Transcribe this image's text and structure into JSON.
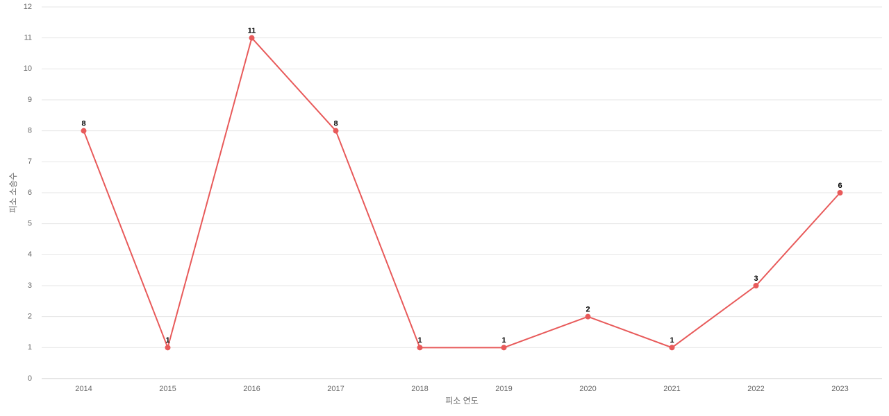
{
  "chart_data": {
    "type": "line",
    "x_label": "피소 연도",
    "y_label": "피소 소송수",
    "categories": [
      "2014",
      "2015",
      "2016",
      "2017",
      "2018",
      "2019",
      "2020",
      "2021",
      "2022",
      "2023"
    ],
    "series": [
      {
        "name": "피소 소송수",
        "color": "#e85a5a",
        "values": [
          8,
          1,
          11,
          8,
          1,
          1,
          2,
          1,
          3,
          6
        ]
      }
    ],
    "ylim": [
      0,
      12
    ],
    "yticks": [
      0,
      1,
      2,
      3,
      4,
      5,
      6,
      7,
      8,
      9,
      10,
      11,
      12
    ],
    "grid": true,
    "legend": false
  }
}
